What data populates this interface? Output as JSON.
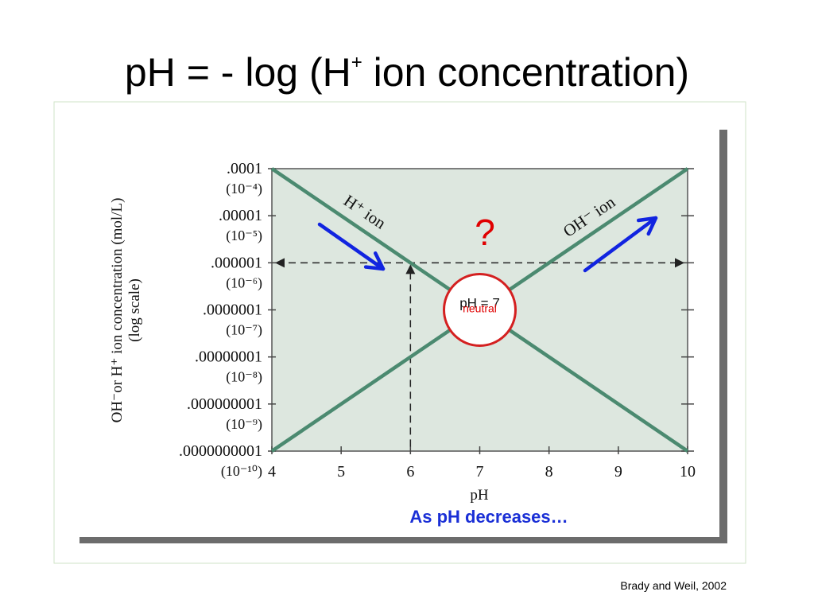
{
  "slide": {
    "title_prefix": "pH = - log (H",
    "title_sup": "+",
    "title_suffix": " ion concentration)",
    "caption": "As pH decreases…",
    "credit": "Brady and Weil, 2002"
  },
  "chart_data": {
    "type": "line",
    "xlabel": "pH",
    "ylabel": "OH⁻or H⁺ ion concentration (mol/L)",
    "ylabel_sub": "(log scale)",
    "x_ticks": [
      4,
      5,
      6,
      7,
      8,
      9,
      10
    ],
    "xlim": [
      4,
      10
    ],
    "y_scale": "log",
    "ylim": [
      1e-10,
      0.0001
    ],
    "y_ticks": [
      {
        "value": 0.0001,
        "label": ".0001",
        "exp": "(10⁻⁴)"
      },
      {
        "value": 1e-05,
        "label": ".00001",
        "exp": "(10⁻⁵)"
      },
      {
        "value": 1e-06,
        "label": ".000001",
        "exp": "(10⁻⁶)"
      },
      {
        "value": 1e-07,
        "label": ".0000001",
        "exp": "(10⁻⁷)"
      },
      {
        "value": 1e-08,
        "label": ".00000001",
        "exp": "(10⁻⁸)"
      },
      {
        "value": 1e-09,
        "label": ".000000001",
        "exp": "(10⁻⁹)"
      },
      {
        "value": 1e-10,
        "label": ".0000000001",
        "exp": "(10⁻¹⁰)"
      }
    ],
    "series": [
      {
        "name": "H⁺ ion",
        "x": [
          4,
          10
        ],
        "y": [
          0.0001,
          1e-10
        ]
      },
      {
        "name": "OH⁻ ion",
        "x": [
          4,
          10
        ],
        "y": [
          1e-10,
          0.0001
        ]
      }
    ],
    "reference": {
      "x": 6,
      "y": 1e-06
    },
    "annotations": {
      "question": "?",
      "neutral_top": "pH = 7",
      "neutral_bottom": "neutral",
      "neutral_x": 7,
      "neutral_y": 1e-07
    },
    "colors": {
      "line": "#4b8a70",
      "plot_bg": "#dde7df",
      "arrow": "#1124e0",
      "question": "#e00000",
      "circle": "#d42020"
    }
  }
}
